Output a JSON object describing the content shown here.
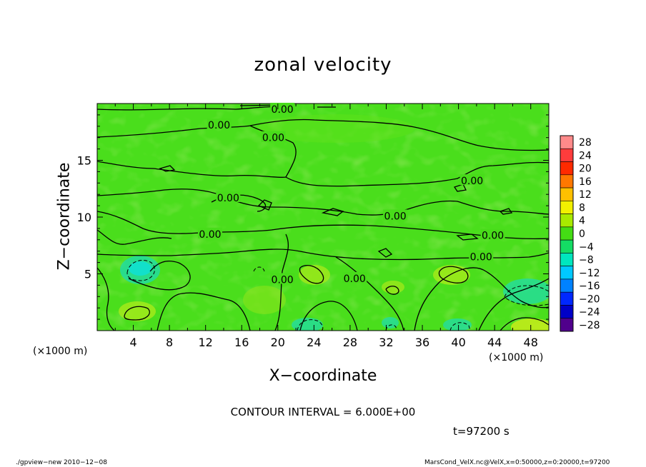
{
  "chart_data": {
    "type": "heatmap",
    "title": "zonal velocity",
    "xlabel": "X−coordinate",
    "ylabel": "Z−coordinate",
    "x_unit_left": "(×1000 m)",
    "x_unit_right": "(×1000 m)",
    "xlim": [
      0,
      50
    ],
    "ylim": [
      0,
      20
    ],
    "xticks": [
      4,
      8,
      12,
      16,
      20,
      24,
      28,
      32,
      36,
      40,
      44,
      48
    ],
    "yticks": [
      5,
      10,
      15
    ],
    "colorbar": {
      "levels": [
        28,
        24,
        20,
        16,
        12,
        8,
        4,
        0,
        -4,
        -8,
        -12,
        -16,
        -20,
        -24,
        -28
      ],
      "labels": [
        "28",
        "24",
        "20",
        "16",
        "12",
        "8",
        "4",
        "0",
        "−4",
        "−8",
        "−12",
        "−16",
        "−20",
        "−24",
        "−28"
      ],
      "colors": [
        "#ff8a8a",
        "#ff3c3c",
        "#ff2a00",
        "#ff7800",
        "#ffc000",
        "#f2f000",
        "#a8ea00",
        "#44dc14",
        "#14dc64",
        "#00e6be",
        "#00c8ff",
        "#0082ff",
        "#0028ff",
        "#0000c8",
        "#50008c"
      ]
    },
    "contour_labels": [
      {
        "text": "0.00",
        "x": 20.5,
        "z": 19.5
      },
      {
        "text": "0.00",
        "x": 13.5,
        "z": 18.1
      },
      {
        "text": "0.00",
        "x": 19.5,
        "z": 17.0
      },
      {
        "text": "0.00",
        "x": 14.5,
        "z": 11.7
      },
      {
        "text": "0.00",
        "x": 41.5,
        "z": 13.2
      },
      {
        "text": "0.00",
        "x": 33.0,
        "z": 10.1
      },
      {
        "text": "0.00",
        "x": 12.5,
        "z": 8.5
      },
      {
        "text": "0.00",
        "x": 43.8,
        "z": 8.4
      },
      {
        "text": "0.00",
        "x": 42.5,
        "z": 6.5
      },
      {
        "text": "0.00",
        "x": 20.5,
        "z": 4.5
      },
      {
        "text": "0.00",
        "x": 28.5,
        "z": 4.6
      }
    ],
    "contour_interval_text": "CONTOUR INTERVAL = 6.000E+00",
    "time_text": "t=97200 s"
  },
  "footer": {
    "left": "./gpview−new   2010−12−08",
    "right": "MarsCond_VelX.nc@VelX,x=0:50000,z=0:20000,t=97200"
  }
}
